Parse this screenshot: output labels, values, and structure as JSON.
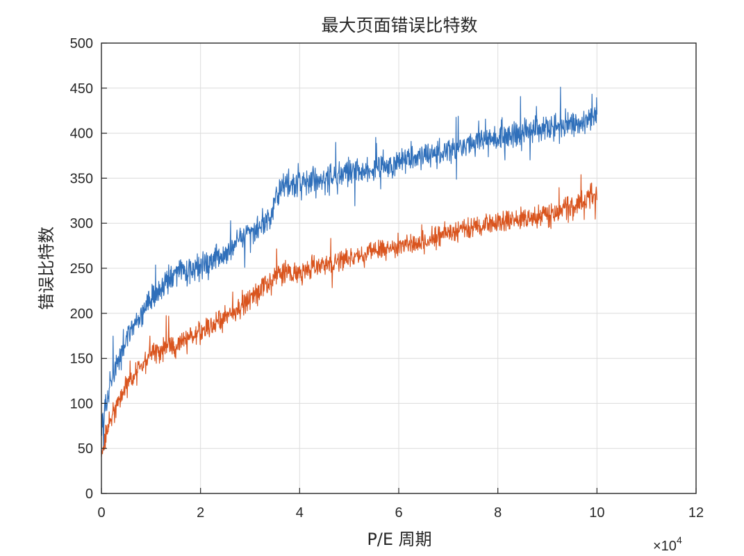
{
  "chart_data": {
    "type": "line",
    "title": "最大页面错误比特数",
    "xlabel": "P/E 周期",
    "ylabel": "错误比特数",
    "x_exponent_label": "×10",
    "x_exponent_power": "4",
    "xlim": [
      0,
      12
    ],
    "ylim": [
      0,
      500
    ],
    "x_ticks": [
      "0",
      "2",
      "4",
      "6",
      "8",
      "10",
      "12"
    ],
    "y_ticks": [
      "0",
      "50",
      "100",
      "150",
      "200",
      "250",
      "300",
      "350",
      "400",
      "450",
      "500"
    ],
    "grid": true,
    "series": [
      {
        "color": "#2F6FBA",
        "x": [
          0,
          0.2,
          0.5,
          1.0,
          1.5,
          2.0,
          2.5,
          3.0,
          3.4,
          3.6,
          4.0,
          4.5,
          5.0,
          5.5,
          6.0,
          6.5,
          7.0,
          7.5,
          8.0,
          8.5,
          9.0,
          9.5,
          10.0
        ],
        "values": [
          80,
          125,
          170,
          215,
          245,
          250,
          265,
          290,
          305,
          340,
          345,
          350,
          355,
          360,
          370,
          375,
          380,
          390,
          395,
          400,
          405,
          410,
          420
        ],
        "noise": 22
      },
      {
        "color": "#D9541E",
        "x": [
          0,
          0.2,
          0.5,
          1.0,
          1.5,
          2.0,
          2.5,
          3.0,
          3.4,
          3.6,
          4.0,
          4.5,
          5.0,
          5.5,
          6.0,
          6.5,
          7.0,
          7.5,
          8.0,
          8.5,
          9.0,
          9.5,
          10.0
        ],
        "values": [
          45,
          85,
          120,
          155,
          165,
          180,
          195,
          215,
          235,
          245,
          245,
          255,
          260,
          270,
          275,
          280,
          290,
          295,
          300,
          305,
          310,
          318,
          335
        ],
        "noise": 18
      }
    ]
  }
}
